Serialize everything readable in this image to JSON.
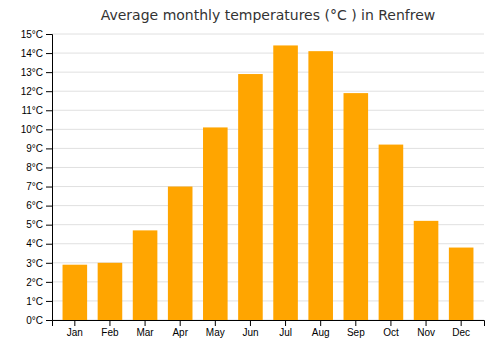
{
  "chart_data": {
    "type": "bar",
    "title": "Average monthly temperatures (°C ) in Renfrew",
    "categories": [
      "Jan",
      "Feb",
      "Mar",
      "Apr",
      "May",
      "Jun",
      "Jul",
      "Aug",
      "Sep",
      "Oct",
      "Nov",
      "Dec"
    ],
    "values": [
      2.9,
      3.0,
      4.7,
      7.0,
      10.1,
      12.9,
      14.4,
      14.1,
      11.9,
      9.2,
      5.2,
      3.8
    ],
    "color": "#FFA500",
    "ylim": [
      0,
      15
    ],
    "yticks": [
      {
        "value": 0,
        "label": "0°C"
      },
      {
        "value": 1,
        "label": "1°C"
      },
      {
        "value": 2,
        "label": "2°C"
      },
      {
        "value": 3,
        "label": "3°C"
      },
      {
        "value": 4,
        "label": "4°C"
      },
      {
        "value": 5,
        "label": "5°C"
      },
      {
        "value": 6,
        "label": "6°C"
      },
      {
        "value": 7,
        "label": "7°C"
      },
      {
        "value": 8,
        "label": "8°C"
      },
      {
        "value": 9,
        "label": "9°C"
      },
      {
        "value": 10,
        "label": "10°C"
      },
      {
        "value": 11,
        "label": "11°C"
      },
      {
        "value": 12,
        "label": "12°C"
      },
      {
        "value": 13,
        "label": "13°C"
      },
      {
        "value": 14,
        "label": "14°C"
      },
      {
        "value": 15,
        "label": "15°C"
      }
    ],
    "grid": true
  }
}
